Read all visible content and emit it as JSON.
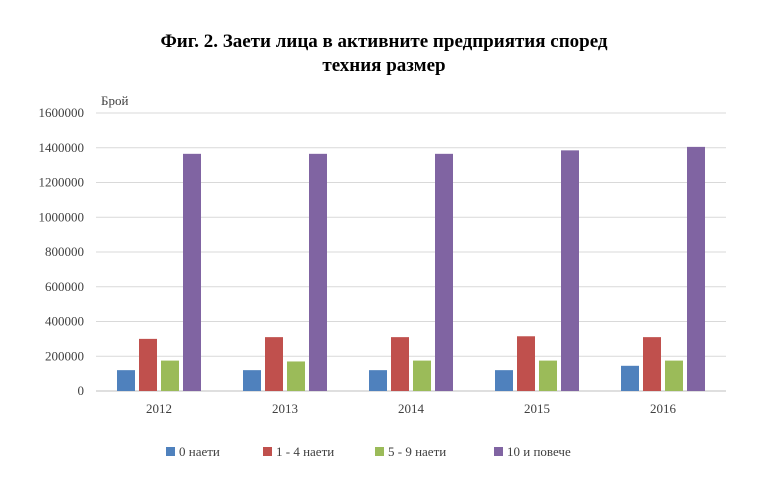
{
  "chart_data": {
    "type": "bar",
    "title_lines": [
      "Фиг. 2. Заети лица в активните предприятия според",
      "техния размер"
    ],
    "ylabel": "Брой",
    "xlabel": "",
    "categories": [
      "2012",
      "2013",
      "2014",
      "2015",
      "2016"
    ],
    "ylim": [
      0,
      1600000
    ],
    "yticks": [
      "0",
      "200000",
      "400000",
      "600000",
      "800000",
      "1000000",
      "1200000",
      "1400000",
      "1600000"
    ],
    "grid": true,
    "legend_position": "bottom",
    "series": [
      {
        "name": "0 наети",
        "color": "#4F81BD",
        "values": [
          120000,
          120000,
          120000,
          120000,
          145000
        ]
      },
      {
        "name": "1 - 4 наети",
        "color": "#C0504D",
        "values": [
          300000,
          310000,
          310000,
          315000,
          310000
        ]
      },
      {
        "name": "5 - 9 наети",
        "color": "#9BBB59",
        "values": [
          175000,
          170000,
          175000,
          175000,
          175000
        ]
      },
      {
        "name": "10 и повече",
        "color": "#8064A2",
        "values": [
          1365000,
          1365000,
          1365000,
          1385000,
          1405000
        ]
      }
    ]
  }
}
